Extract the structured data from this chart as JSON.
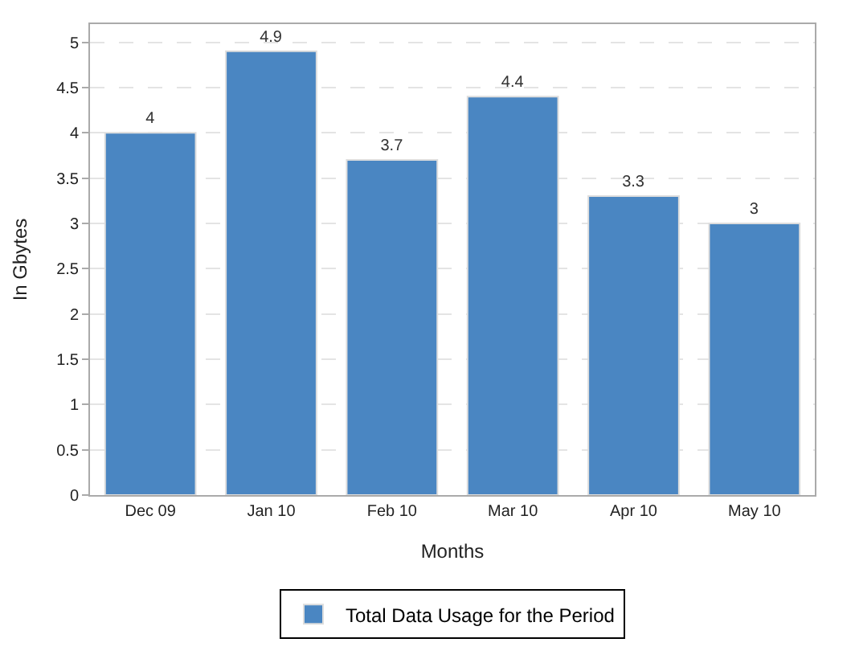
{
  "chart_data": {
    "type": "bar",
    "xlabel": "Months",
    "ylabel": "In Gbytes",
    "categories": [
      "Dec 09",
      "Jan 10",
      "Feb 10",
      "Mar 10",
      "Apr 10",
      "May 10"
    ],
    "series": [
      {
        "name": "Total Data Usage for the Period",
        "color": "#4a86c2",
        "values": [
          4,
          4.9,
          3.7,
          4.4,
          3.3,
          3
        ]
      }
    ],
    "ylim": [
      0,
      5.2
    ],
    "yticks": [
      0,
      0.5,
      1,
      1.5,
      2,
      2.5,
      3,
      3.5,
      4,
      4.5,
      5
    ],
    "grid": "y",
    "legend": "bottom",
    "data_labels": true
  }
}
